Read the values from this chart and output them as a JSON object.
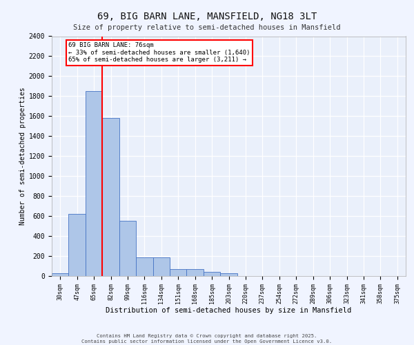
{
  "title_line1": "69, BIG BARN LANE, MANSFIELD, NG18 3LT",
  "title_line2": "Size of property relative to semi-detached houses in Mansfield",
  "xlabel": "Distribution of semi-detached houses by size in Mansfield",
  "ylabel": "Number of semi-detached properties",
  "categories": [
    "30sqm",
    "47sqm",
    "65sqm",
    "82sqm",
    "99sqm",
    "116sqm",
    "134sqm",
    "151sqm",
    "168sqm",
    "185sqm",
    "203sqm",
    "220sqm",
    "237sqm",
    "254sqm",
    "272sqm",
    "289sqm",
    "306sqm",
    "323sqm",
    "341sqm",
    "358sqm",
    "375sqm"
  ],
  "values": [
    30,
    620,
    1850,
    1580,
    550,
    185,
    185,
    70,
    70,
    40,
    25,
    0,
    0,
    0,
    0,
    0,
    0,
    0,
    0,
    0,
    0
  ],
  "bar_color": "#aec6e8",
  "bar_edge_color": "#4472c4",
  "background_color": "#eaf0fb",
  "fig_background_color": "#f0f4ff",
  "grid_color": "#ffffff",
  "vline_color": "red",
  "annotation_text": "69 BIG BARN LANE: 76sqm\n← 33% of semi-detached houses are smaller (1,640)\n65% of semi-detached houses are larger (3,211) →",
  "annotation_box_color": "white",
  "annotation_box_edge_color": "red",
  "ylim": [
    0,
    2400
  ],
  "yticks": [
    0,
    200,
    400,
    600,
    800,
    1000,
    1200,
    1400,
    1600,
    1800,
    2000,
    2200,
    2400
  ],
  "footer_line1": "Contains HM Land Registry data © Crown copyright and database right 2025.",
  "footer_line2": "Contains public sector information licensed under the Open Government Licence v3.0."
}
